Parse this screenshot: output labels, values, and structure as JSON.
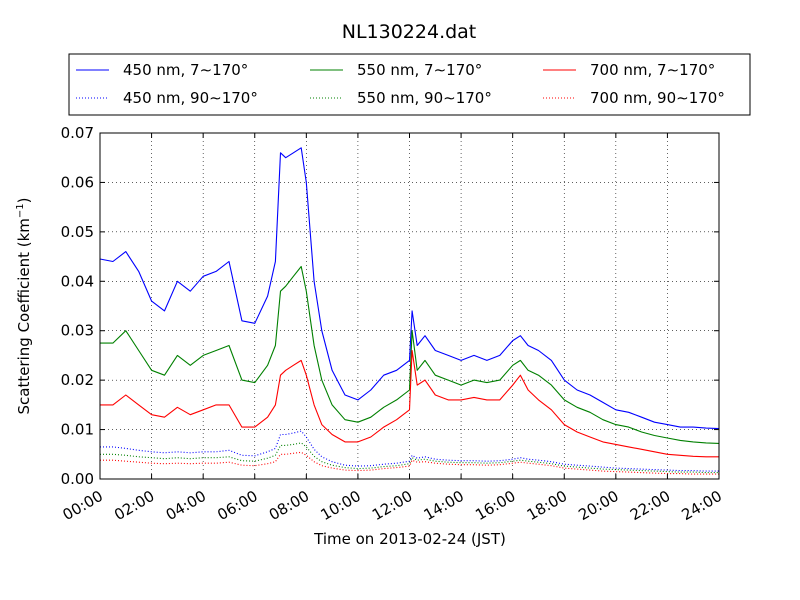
{
  "chart_data": {
    "type": "line",
    "title": "NL130224.dat",
    "xlabel": "Time on 2013-02-24 (JST)",
    "ylabel": "Scattering Coefficient (km",
    "ylabel_sup": "−1",
    "ylabel_close": ")",
    "xlim": [
      0,
      24
    ],
    "ylim": [
      0,
      0.07
    ],
    "x_tick_values": [
      0,
      2,
      4,
      6,
      8,
      10,
      12,
      14,
      16,
      18,
      20,
      22,
      24
    ],
    "x_tick_labels": [
      "00:00",
      "02:00",
      "04:00",
      "06:00",
      "08:00",
      "10:00",
      "12:00",
      "14:00",
      "16:00",
      "18:00",
      "20:00",
      "22:00",
      "24:00"
    ],
    "y_tick_values": [
      0,
      0.01,
      0.02,
      0.03,
      0.04,
      0.05,
      0.06,
      0.07
    ],
    "y_tick_labels": [
      "0.00",
      "0.01",
      "0.02",
      "0.03",
      "0.04",
      "0.05",
      "0.06",
      "0.07"
    ],
    "grid": true,
    "legend_position": "top",
    "x": [
      0,
      0.5,
      1,
      1.5,
      2,
      2.5,
      3,
      3.5,
      4,
      4.5,
      5,
      5.5,
      6,
      6.5,
      6.8,
      7,
      7.2,
      7.5,
      7.8,
      8,
      8.3,
      8.6,
      9,
      9.5,
      10,
      10.5,
      11,
      11.5,
      12,
      12.1,
      12.3,
      12.6,
      13,
      13.5,
      14,
      14.5,
      15,
      15.5,
      16,
      16.3,
      16.6,
      17,
      17.5,
      18,
      18.5,
      19,
      19.5,
      20,
      20.5,
      21,
      21.5,
      22,
      22.5,
      23,
      23.5,
      24
    ],
    "series": [
      {
        "name": "450 nm, 7∼170°",
        "color": "#0000ff",
        "style": "solid",
        "values": [
          0.0445,
          0.044,
          0.046,
          0.042,
          0.036,
          0.034,
          0.04,
          0.038,
          0.041,
          0.042,
          0.044,
          0.032,
          0.0315,
          0.037,
          0.044,
          0.066,
          0.065,
          0.066,
          0.067,
          0.06,
          0.04,
          0.03,
          0.022,
          0.017,
          0.016,
          0.018,
          0.021,
          0.022,
          0.024,
          0.034,
          0.027,
          0.029,
          0.026,
          0.025,
          0.024,
          0.025,
          0.024,
          0.025,
          0.028,
          0.029,
          0.027,
          0.026,
          0.024,
          0.02,
          0.018,
          0.017,
          0.0155,
          0.014,
          0.0135,
          0.0125,
          0.0115,
          0.011,
          0.0105,
          0.0105,
          0.0103,
          0.0102
        ]
      },
      {
        "name": "550 nm, 7∼170°",
        "color": "#008000",
        "style": "solid",
        "values": [
          0.0275,
          0.0275,
          0.03,
          0.026,
          0.022,
          0.021,
          0.025,
          0.023,
          0.025,
          0.026,
          0.027,
          0.02,
          0.0195,
          0.023,
          0.027,
          0.038,
          0.039,
          0.041,
          0.043,
          0.038,
          0.027,
          0.02,
          0.015,
          0.012,
          0.0115,
          0.0125,
          0.0145,
          0.016,
          0.018,
          0.03,
          0.022,
          0.024,
          0.021,
          0.02,
          0.019,
          0.02,
          0.0195,
          0.02,
          0.023,
          0.024,
          0.022,
          0.021,
          0.019,
          0.016,
          0.0145,
          0.0135,
          0.012,
          0.011,
          0.0105,
          0.0095,
          0.0088,
          0.0083,
          0.0078,
          0.0075,
          0.0073,
          0.0072
        ]
      },
      {
        "name": "700 nm, 7∼170°",
        "color": "#ff0000",
        "style": "solid",
        "values": [
          0.015,
          0.015,
          0.017,
          0.015,
          0.013,
          0.0125,
          0.0145,
          0.013,
          0.014,
          0.015,
          0.015,
          0.0105,
          0.0105,
          0.0125,
          0.015,
          0.021,
          0.022,
          0.023,
          0.024,
          0.021,
          0.015,
          0.011,
          0.009,
          0.0075,
          0.0075,
          0.0085,
          0.0105,
          0.012,
          0.014,
          0.026,
          0.019,
          0.02,
          0.017,
          0.016,
          0.016,
          0.0165,
          0.016,
          0.016,
          0.019,
          0.021,
          0.018,
          0.016,
          0.014,
          0.011,
          0.0095,
          0.0085,
          0.0075,
          0.007,
          0.0065,
          0.006,
          0.0055,
          0.005,
          0.0048,
          0.0046,
          0.0045,
          0.0045
        ]
      },
      {
        "name": "450 nm, 90∼170°",
        "color": "#0000ff",
        "style": "dotted",
        "values": [
          0.0065,
          0.0065,
          0.0062,
          0.0058,
          0.0055,
          0.0053,
          0.0055,
          0.0053,
          0.0055,
          0.0055,
          0.0058,
          0.0048,
          0.0047,
          0.0055,
          0.0062,
          0.009,
          0.009,
          0.0093,
          0.0097,
          0.0085,
          0.006,
          0.0045,
          0.0035,
          0.0028,
          0.0026,
          0.0027,
          0.003,
          0.0032,
          0.0036,
          0.0048,
          0.0042,
          0.0045,
          0.004,
          0.0038,
          0.0037,
          0.0037,
          0.0036,
          0.0037,
          0.004,
          0.0043,
          0.004,
          0.0038,
          0.0035,
          0.003,
          0.0028,
          0.0026,
          0.0024,
          0.0022,
          0.0021,
          0.002,
          0.0019,
          0.0018,
          0.0017,
          0.0017,
          0.0016,
          0.0016
        ]
      },
      {
        "name": "550 nm, 90∼170°",
        "color": "#008000",
        "style": "dotted",
        "values": [
          0.005,
          0.005,
          0.0048,
          0.0045,
          0.0043,
          0.0041,
          0.0043,
          0.0041,
          0.0043,
          0.0043,
          0.0045,
          0.0037,
          0.0036,
          0.0042,
          0.0048,
          0.0068,
          0.0068,
          0.007,
          0.0073,
          0.0065,
          0.0046,
          0.0035,
          0.0028,
          0.0023,
          0.0021,
          0.0022,
          0.0025,
          0.0027,
          0.0031,
          0.0043,
          0.0038,
          0.004,
          0.0036,
          0.0034,
          0.0033,
          0.0033,
          0.0032,
          0.0033,
          0.0036,
          0.0038,
          0.0036,
          0.0034,
          0.0031,
          0.0026,
          0.0024,
          0.0022,
          0.002,
          0.0019,
          0.0018,
          0.0017,
          0.0016,
          0.0015,
          0.0014,
          0.0014,
          0.0013,
          0.0013
        ]
      },
      {
        "name": "700 nm, 90∼170°",
        "color": "#ff0000",
        "style": "dotted",
        "values": [
          0.0038,
          0.0038,
          0.0036,
          0.0034,
          0.0032,
          0.0031,
          0.0032,
          0.0031,
          0.0032,
          0.0032,
          0.0034,
          0.0028,
          0.0027,
          0.0031,
          0.0035,
          0.005,
          0.005,
          0.0052,
          0.0054,
          0.0048,
          0.0035,
          0.0027,
          0.0022,
          0.0018,
          0.0017,
          0.0018,
          0.0021,
          0.0023,
          0.0026,
          0.0038,
          0.0034,
          0.0035,
          0.0032,
          0.003,
          0.0029,
          0.0029,
          0.0028,
          0.0029,
          0.0032,
          0.0034,
          0.0032,
          0.003,
          0.0027,
          0.0022,
          0.002,
          0.0018,
          0.0016,
          0.0015,
          0.0014,
          0.0013,
          0.0012,
          0.0011,
          0.0011,
          0.001,
          0.001,
          0.001
        ]
      }
    ]
  }
}
